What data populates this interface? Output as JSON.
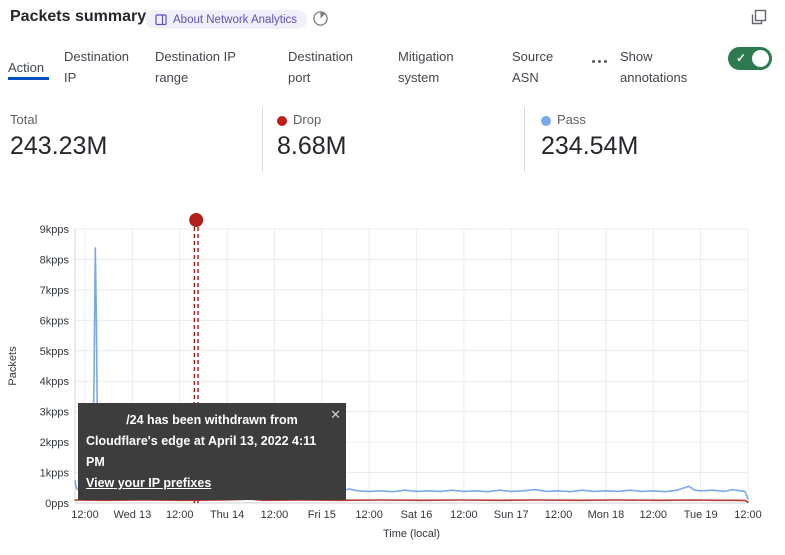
{
  "header": {
    "title": "Packets summary",
    "about_badge_label": "About Network Analytics"
  },
  "tabs": {
    "items": [
      "Action",
      "Destination IP",
      "Destination IP range",
      "Destination port",
      "Mitigation system",
      "Source ASN"
    ],
    "active": "Action",
    "more_icon": "more-options-ellipsis",
    "annotations_label": "Show annotations",
    "annotations_toggle_on": true
  },
  "stats": {
    "total": {
      "label": "Total",
      "value": "243.23M"
    },
    "drop": {
      "label": "Drop",
      "value": "8.68M",
      "color": "#c11e1a"
    },
    "pass": {
      "label": "Pass",
      "value": "234.54M",
      "color": "#7aa9ea"
    }
  },
  "annotation_tooltip": {
    "line1": "/24 has been withdrawn from",
    "line2": "Cloudflare's edge at April 13, 2022 4:11 PM",
    "link": "View your IP prefixes",
    "close_icon": "close-x"
  },
  "chart_data": {
    "type": "line",
    "ylabel": "Packets",
    "xlabel": "Time (local)",
    "ylim": [
      0,
      9
    ],
    "y_unit": "kpps",
    "y_ticks": [
      "0pps",
      "1kpps",
      "2kpps",
      "3kpps",
      "4kpps",
      "5kpps",
      "6kpps",
      "7kpps",
      "8kpps",
      "9kpps"
    ],
    "x_ticks": [
      "12:00",
      "Wed 13",
      "12:00",
      "Thu 14",
      "12:00",
      "Fri 15",
      "12:00",
      "Sat 16",
      "12:00",
      "Sun 17",
      "12:00",
      "Mon 18",
      "12:00",
      "Tue 19",
      "12:00"
    ],
    "x_tick_interval_hours": 12,
    "grid": true,
    "legend_position": "top-stats-row",
    "annotation": {
      "label": "/24 has been withdrawn from Cloudflare's edge at April 13, 2022 4:11 PM",
      "x_hours_from_first_tick": 28.18,
      "color": "#a3170c",
      "style": "double-dashed-vertical-line-with-dot"
    },
    "series": [
      {
        "name": "Pass",
        "color": "#7aa9ea",
        "points": [
          [
            -2.5,
            0.72
          ],
          [
            -2.2,
            0.5
          ],
          [
            -1.5,
            0.4
          ],
          [
            -0.5,
            0.37
          ],
          [
            0.5,
            0.38
          ],
          [
            1.5,
            0.42
          ],
          [
            1.9,
            0.8
          ],
          [
            2.3,
            4.2
          ],
          [
            2.6,
            8.38
          ],
          [
            2.9,
            6.0
          ],
          [
            3.2,
            1.6
          ],
          [
            3.6,
            0.8
          ],
          [
            4.2,
            0.55
          ],
          [
            5,
            0.47
          ],
          [
            6.5,
            0.42
          ],
          [
            8,
            0.4
          ],
          [
            10,
            0.38
          ],
          [
            12,
            0.37
          ],
          [
            14,
            0.38
          ],
          [
            16,
            0.4
          ],
          [
            18.5,
            0.55
          ],
          [
            19.5,
            0.42
          ],
          [
            22,
            0.38
          ],
          [
            25,
            0.4
          ],
          [
            28,
            0.38
          ],
          [
            31,
            0.37
          ],
          [
            34,
            0.42
          ],
          [
            35.5,
            0.52
          ],
          [
            37,
            0.4
          ],
          [
            40,
            0.38
          ],
          [
            43,
            0.4
          ],
          [
            46,
            0.37
          ],
          [
            49,
            0.4
          ],
          [
            52,
            0.38
          ],
          [
            55,
            0.42
          ],
          [
            58,
            0.38
          ],
          [
            61,
            0.4
          ],
          [
            64,
            0.37
          ],
          [
            67,
            0.46
          ],
          [
            69,
            0.4
          ],
          [
            72,
            0.38
          ],
          [
            75,
            0.4
          ],
          [
            78,
            0.37
          ],
          [
            81,
            0.42
          ],
          [
            84,
            0.38
          ],
          [
            87,
            0.4
          ],
          [
            90,
            0.38
          ],
          [
            93,
            0.42
          ],
          [
            96,
            0.38
          ],
          [
            99,
            0.4
          ],
          [
            102,
            0.37
          ],
          [
            105,
            0.42
          ],
          [
            108,
            0.38
          ],
          [
            111,
            0.4
          ],
          [
            114,
            0.44
          ],
          [
            117,
            0.38
          ],
          [
            120,
            0.4
          ],
          [
            123,
            0.37
          ],
          [
            126,
            0.42
          ],
          [
            129,
            0.38
          ],
          [
            132,
            0.4
          ],
          [
            135,
            0.38
          ],
          [
            138,
            0.42
          ],
          [
            141,
            0.38
          ],
          [
            144,
            0.4
          ],
          [
            147,
            0.37
          ],
          [
            150,
            0.42
          ],
          [
            153,
            0.55
          ],
          [
            154.5,
            0.42
          ],
          [
            156,
            0.4
          ],
          [
            159,
            0.42
          ],
          [
            162,
            0.38
          ],
          [
            164,
            0.44
          ],
          [
            166,
            0.4
          ],
          [
            167.2,
            0.38
          ],
          [
            167.8,
            0.2
          ],
          [
            168,
            0.13
          ]
        ]
      },
      {
        "name": "Drop",
        "color": "#b53a31",
        "points": [
          [
            -2.5,
            0.1
          ],
          [
            5,
            0.09
          ],
          [
            15,
            0.1
          ],
          [
            25,
            0.09
          ],
          [
            35,
            0.1
          ],
          [
            40.5,
            0.12
          ],
          [
            41.5,
            0.33
          ],
          [
            42.5,
            0.12
          ],
          [
            45,
            0.09
          ],
          [
            55,
            0.1
          ],
          [
            65,
            0.09
          ],
          [
            75,
            0.1
          ],
          [
            85,
            0.09
          ],
          [
            95,
            0.1
          ],
          [
            105,
            0.09
          ],
          [
            115,
            0.1
          ],
          [
            125,
            0.09
          ],
          [
            135,
            0.1
          ],
          [
            145,
            0.09
          ],
          [
            155,
            0.1
          ],
          [
            160,
            0.09
          ],
          [
            165,
            0.09
          ],
          [
            167.3,
            0.08
          ],
          [
            168,
            0.03
          ]
        ]
      }
    ]
  }
}
